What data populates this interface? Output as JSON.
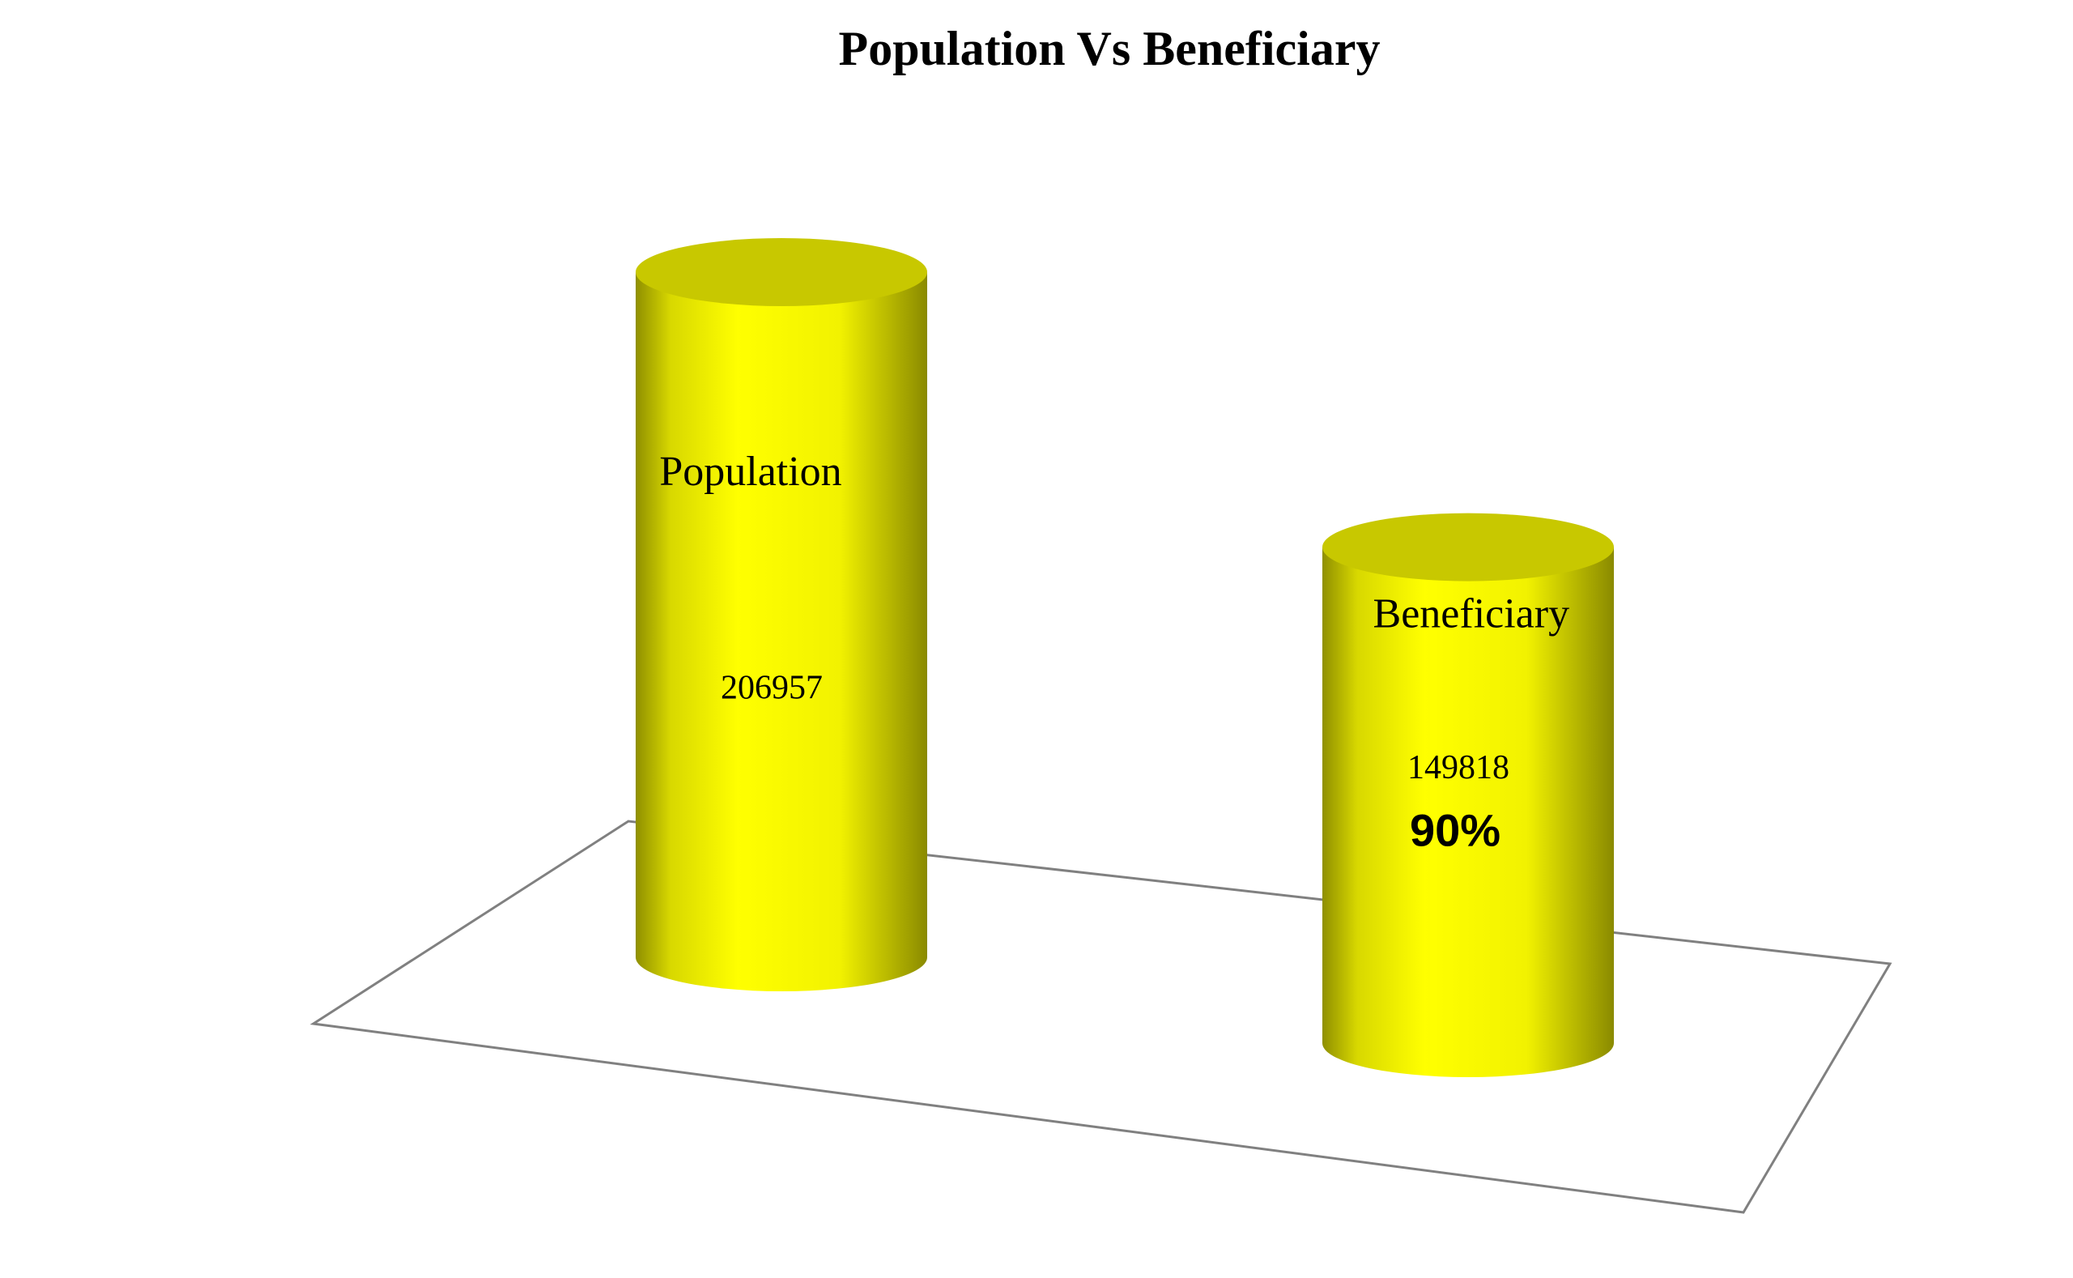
{
  "chart_data": {
    "type": "bar",
    "title": "Population Vs Beneficiary",
    "categories": [
      "Population",
      "Beneficiary"
    ],
    "values": [
      206957,
      149818
    ],
    "color": "#ffff00",
    "annotation": "90%"
  }
}
